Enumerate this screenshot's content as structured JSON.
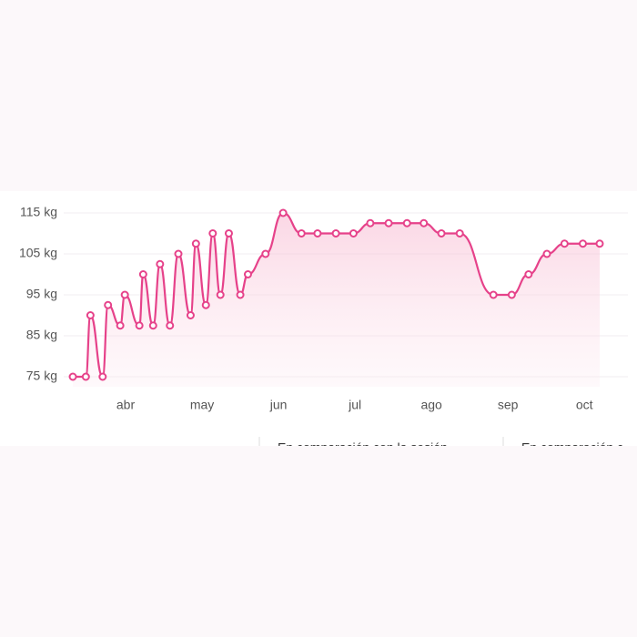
{
  "chart_data": {
    "type": "line",
    "x": [
      3.31,
      3.48,
      3.54,
      3.7,
      3.77,
      3.93,
      3.99,
      4.18,
      4.23,
      4.36,
      4.45,
      4.58,
      4.69,
      4.85,
      4.92,
      5.05,
      5.14,
      5.24,
      5.35,
      5.5,
      5.6,
      5.83,
      6.06,
      6.3,
      6.51,
      6.75,
      6.98,
      7.2,
      7.44,
      7.68,
      7.9,
      8.13,
      8.37,
      8.81,
      9.05,
      9.27,
      9.51,
      9.74,
      9.98,
      10.2
    ],
    "series": [
      {
        "color": "#e6428a",
        "values": [
          75,
          75,
          90,
          75,
          92.5,
          87.5,
          95,
          87.5,
          100,
          87.5,
          102.5,
          87.5,
          105,
          90,
          107.5,
          92.5,
          110,
          95,
          110,
          95,
          100,
          105,
          115,
          110,
          110,
          110,
          110,
          112.5,
          112.5,
          112.5,
          112.5,
          110,
          110,
          95,
          95,
          100,
          105,
          107.5,
          107.5,
          107.5
        ]
      }
    ],
    "xlim": [
      3.25,
      10.45
    ],
    "xticks": [
      {
        "value": 4,
        "label": "abr"
      },
      {
        "value": 5,
        "label": "may"
      },
      {
        "value": 6,
        "label": "jun"
      },
      {
        "value": 7,
        "label": "jul"
      },
      {
        "value": 8,
        "label": "ago"
      },
      {
        "value": 9,
        "label": "sep"
      },
      {
        "value": 10,
        "label": "oct"
      }
    ],
    "ylim": [
      72.5,
      120
    ],
    "yticks": [
      {
        "value": 75,
        "label": "75 kg"
      },
      {
        "value": 85,
        "label": "85 kg"
      },
      {
        "value": 95,
        "label": "95 kg"
      },
      {
        "value": 105,
        "label": "105 kg"
      },
      {
        "value": 115,
        "label": "115 kg"
      }
    ],
    "grid": true
  },
  "cards": [
    "En comparación con la sesión",
    "En comparación c"
  ]
}
